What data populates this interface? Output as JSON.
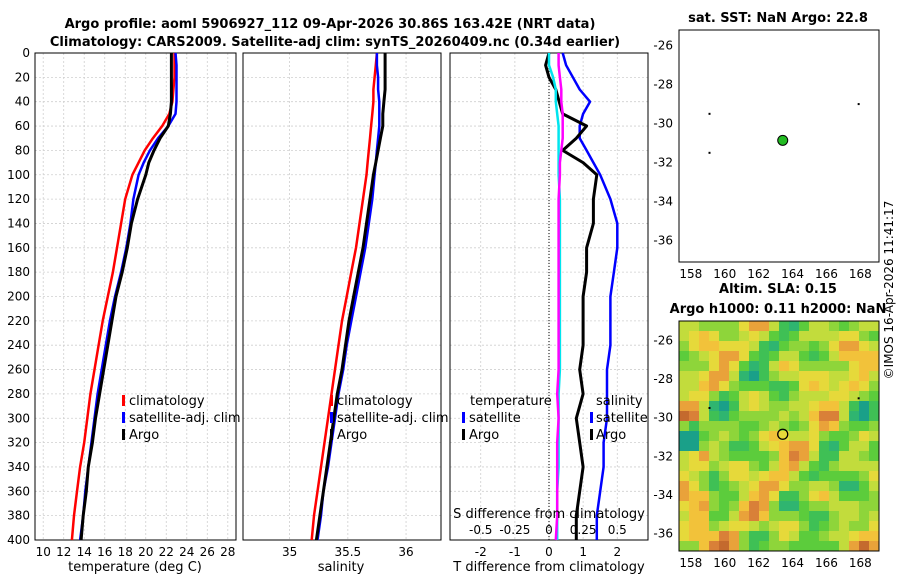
{
  "title": {
    "line1": "Argo profile: aoml 5906927_112 09-Apr-2026 30.86S 163.42E (NRT data)",
    "line2": "Climatology: CARS2009. Satellite-adj clim: synTS_20260409.nc (0.34d earlier)"
  },
  "colors": {
    "clim": "#ff0000",
    "sat": "#0000ff",
    "argo": "#000000",
    "s_diff": "#ff00ff",
    "t_diff": "#00e5ee"
  },
  "depth_axis": {
    "ticks": [
      0,
      20,
      40,
      60,
      80,
      100,
      120,
      140,
      160,
      180,
      200,
      220,
      240,
      260,
      280,
      300,
      320,
      340,
      360,
      380,
      400
    ],
    "range": [
      0,
      400
    ]
  },
  "panel_temp": {
    "xlabel": "temperature (deg C)",
    "xticks": [
      10,
      12,
      14,
      16,
      18,
      20,
      22,
      24,
      26,
      28
    ],
    "xlim": [
      9.2,
      28.8
    ],
    "legend": [
      "climatology",
      "satellite-adj. clim",
      "Argo"
    ]
  },
  "panel_sal": {
    "xlabel": "salinity",
    "xticks": [
      35,
      35.5,
      36
    ],
    "xtick_labels": [
      "35",
      "35.5",
      "36"
    ],
    "xlim": [
      34.6,
      36.3
    ],
    "legend": [
      "climatology",
      "satellite-adj. clim",
      "Argo"
    ]
  },
  "panel_diff": {
    "xlabel": "T difference from climatology",
    "toplabel": "S difference from climatology",
    "xticks": [
      -2,
      -1,
      0,
      1,
      2
    ],
    "xtick_labels": [
      "-2",
      "-1",
      "0",
      "1",
      "2"
    ],
    "sticks": [
      "-0.5",
      "-0.25",
      "0",
      "0.25",
      "0.5"
    ],
    "xlim": [
      -2.9,
      2.9
    ],
    "legend_left": [
      "temperature",
      "satellite",
      "Argo"
    ],
    "legend_right": [
      "salinity",
      "satellite",
      "Argo"
    ]
  },
  "map_sst": {
    "title": "sat. SST: NaN Argo: 22.8",
    "lonticks": [
      "158",
      "160",
      "162",
      "164",
      "166",
      "168"
    ],
    "latticks": [
      "-26",
      "-28",
      "-30",
      "-32",
      "-34",
      "-36"
    ]
  },
  "map_sla": {
    "title1": "Altim. SLA: 0.15",
    "title2": "Argo h1000: 0.11 h2000: NaN",
    "lonticks": [
      "158",
      "160",
      "162",
      "164",
      "166",
      "168"
    ],
    "latticks": [
      "-26",
      "-28",
      "-30",
      "-32",
      "-34",
      "-36"
    ]
  },
  "credit": "©IMOS 16-Apr-2026 11:41:17",
  "chart_data": {
    "type": "line",
    "float_position": {
      "lat": -30.86,
      "lon": 163.42
    },
    "depth": [
      0,
      10,
      20,
      30,
      40,
      50,
      60,
      70,
      80,
      90,
      100,
      120,
      140,
      160,
      180,
      200,
      220,
      240,
      260,
      280,
      300,
      320,
      340,
      360,
      380,
      400
    ],
    "temperature": [
      {
        "name": "climatology",
        "values": [
          22.8,
          22.8,
          22.8,
          22.7,
          22.6,
          22.3,
          21.6,
          20.7,
          19.9,
          19.3,
          18.7,
          18.0,
          17.6,
          17.2,
          16.8,
          16.3,
          15.8,
          15.4,
          15.0,
          14.6,
          14.3,
          14.0,
          13.6,
          13.3,
          13.0,
          12.8
        ]
      },
      {
        "name": "satellite-adj. clim",
        "values": [
          22.9,
          23.0,
          23.0,
          23.0,
          23.0,
          22.9,
          22.2,
          21.2,
          20.4,
          19.8,
          19.3,
          18.8,
          18.5,
          18.1,
          17.6,
          17.0,
          16.5,
          16.1,
          15.7,
          15.3,
          15.0,
          14.7,
          14.4,
          14.1,
          13.9,
          13.6
        ]
      },
      {
        "name": "Argo",
        "values": [
          22.5,
          22.5,
          22.5,
          22.5,
          22.5,
          22.4,
          22.2,
          21.4,
          20.8,
          20.3,
          20.0,
          19.2,
          18.6,
          18.2,
          17.7,
          17.1,
          16.7,
          16.3,
          15.9,
          15.5,
          15.1,
          14.8,
          14.4,
          14.2,
          13.9,
          13.7
        ]
      }
    ],
    "salinity": [
      {
        "name": "climatology",
        "values": [
          35.75,
          35.74,
          35.73,
          35.72,
          35.72,
          35.71,
          35.7,
          35.69,
          35.68,
          35.67,
          35.66,
          35.63,
          35.6,
          35.57,
          35.53,
          35.49,
          35.45,
          35.42,
          35.39,
          35.36,
          35.33,
          35.3,
          35.27,
          35.24,
          35.21,
          35.19
        ]
      },
      {
        "name": "satellite-adj. clim",
        "values": [
          35.75,
          35.75,
          35.76,
          35.76,
          35.77,
          35.77,
          35.77,
          35.76,
          35.75,
          35.74,
          35.73,
          35.71,
          35.68,
          35.65,
          35.61,
          35.57,
          35.53,
          35.49,
          35.46,
          35.42,
          35.39,
          35.36,
          35.33,
          35.29,
          35.27,
          35.24
        ]
      },
      {
        "name": "Argo",
        "values": [
          35.82,
          35.82,
          35.82,
          35.82,
          35.81,
          35.8,
          35.8,
          35.78,
          35.76,
          35.74,
          35.72,
          35.69,
          35.66,
          35.63,
          35.59,
          35.55,
          35.51,
          35.48,
          35.45,
          35.41,
          35.38,
          35.35,
          35.32,
          35.29,
          35.26,
          35.23
        ]
      }
    ],
    "T_difference": [
      {
        "name": "satellite",
        "values": [
          0.4,
          0.5,
          0.7,
          0.9,
          1.2,
          1.0,
          0.9,
          0.9,
          1.1,
          1.3,
          1.5,
          1.8,
          2.0,
          2.0,
          1.9,
          1.8,
          1.8,
          1.8,
          1.7,
          1.7,
          1.7,
          1.6,
          1.6,
          1.5,
          1.4,
          1.4
        ]
      },
      {
        "name": "Argo",
        "values": [
          0.0,
          -0.1,
          0.0,
          0.2,
          0.3,
          0.4,
          1.1,
          0.8,
          0.4,
          1.0,
          1.4,
          1.3,
          1.3,
          1.1,
          1.1,
          1.0,
          1.0,
          1.0,
          0.9,
          1.0,
          0.8,
          0.9,
          1.0,
          0.9,
          0.8,
          0.8
        ]
      }
    ],
    "S_difference": [
      {
        "name": "satellite",
        "values": [
          0.0,
          0.0,
          0.03,
          0.05,
          0.05,
          0.06,
          0.07,
          0.07,
          0.07,
          0.07,
          0.07,
          0.08,
          0.08,
          0.08,
          0.08,
          0.08,
          0.08,
          0.08,
          0.08,
          0.07,
          0.07,
          0.07,
          0.07,
          0.06,
          0.06,
          0.06
        ]
      },
      {
        "name": "Argo",
        "values": [
          0.07,
          0.07,
          0.08,
          0.09,
          0.09,
          0.1,
          0.1,
          0.1,
          0.09,
          0.08,
          0.08,
          0.07,
          0.07,
          0.07,
          0.07,
          0.07,
          0.07,
          0.07,
          0.07,
          0.06,
          0.07,
          0.06,
          0.06,
          0.06,
          0.06,
          0.05
        ]
      }
    ]
  }
}
